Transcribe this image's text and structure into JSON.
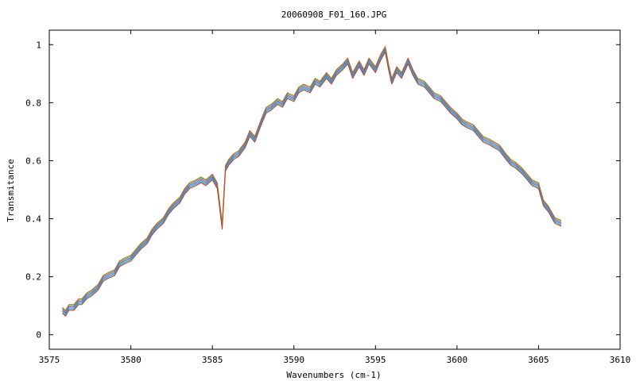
{
  "chart_data": {
    "type": "line",
    "title": "20060908_F01_160.JPG",
    "xlabel": "Wavenumbers (cm-1)",
    "ylabel": "Transmitance",
    "xlim": [
      3575,
      3610
    ],
    "ylim": [
      -0.05,
      1.05
    ],
    "xticks": [
      3575,
      3580,
      3585,
      3590,
      3595,
      3600,
      3605,
      3610
    ],
    "yticks": [
      0,
      0.2,
      0.4,
      0.6,
      0.8,
      1
    ],
    "ytick_labels": [
      "0",
      "0.2",
      "0.4",
      "0.6",
      "0.8",
      "1"
    ],
    "grid": false,
    "series_colors": [
      "#4caf50",
      "#a94fc5",
      "#3b8fd8",
      "#2ab0b0",
      "#c0392b",
      "#b5651d"
    ],
    "series_offsets": [
      0.0,
      -0.004,
      -0.008,
      -0.012,
      -0.016,
      0.004
    ],
    "x": [
      3575.8,
      3576.0,
      3576.2,
      3576.5,
      3576.8,
      3577.0,
      3577.3,
      3577.6,
      3578.0,
      3578.3,
      3578.6,
      3579.0,
      3579.3,
      3579.6,
      3580.0,
      3580.3,
      3580.6,
      3581.0,
      3581.3,
      3581.6,
      3582.0,
      3582.3,
      3582.6,
      3583.0,
      3583.3,
      3583.6,
      3584.0,
      3584.3,
      3584.6,
      3585.0,
      3585.3,
      3585.6,
      3585.8,
      3586.0,
      3586.3,
      3586.6,
      3587.0,
      3587.3,
      3587.6,
      3588.0,
      3588.3,
      3588.6,
      3589.0,
      3589.3,
      3589.6,
      3590.0,
      3590.3,
      3590.6,
      3591.0,
      3591.3,
      3591.6,
      3592.0,
      3592.3,
      3592.6,
      3593.0,
      3593.3,
      3593.6,
      3594.0,
      3594.3,
      3594.6,
      3595.0,
      3595.3,
      3595.6,
      3595.8,
      3596.0,
      3596.3,
      3596.6,
      3597.0,
      3597.3,
      3597.6,
      3598.0,
      3598.3,
      3598.6,
      3599.0,
      3599.3,
      3599.6,
      3600.0,
      3600.3,
      3600.6,
      3601.0,
      3601.3,
      3601.6,
      3602.0,
      3602.3,
      3602.6,
      3603.0,
      3603.3,
      3603.6,
      3604.0,
      3604.3,
      3604.6,
      3605.0,
      3605.3,
      3605.6,
      3606.0,
      3606.4
    ],
    "y": [
      0.09,
      0.08,
      0.1,
      0.1,
      0.12,
      0.12,
      0.14,
      0.15,
      0.17,
      0.2,
      0.21,
      0.22,
      0.25,
      0.26,
      0.27,
      0.29,
      0.31,
      0.33,
      0.36,
      0.38,
      0.4,
      0.43,
      0.45,
      0.47,
      0.5,
      0.52,
      0.53,
      0.54,
      0.53,
      0.55,
      0.52,
      0.38,
      0.58,
      0.6,
      0.62,
      0.63,
      0.66,
      0.7,
      0.68,
      0.74,
      0.78,
      0.79,
      0.81,
      0.8,
      0.83,
      0.82,
      0.85,
      0.86,
      0.85,
      0.88,
      0.87,
      0.9,
      0.88,
      0.91,
      0.93,
      0.95,
      0.9,
      0.94,
      0.91,
      0.95,
      0.92,
      0.96,
      0.99,
      0.93,
      0.88,
      0.92,
      0.9,
      0.95,
      0.91,
      0.88,
      0.87,
      0.85,
      0.83,
      0.82,
      0.8,
      0.78,
      0.76,
      0.74,
      0.73,
      0.72,
      0.7,
      0.68,
      0.67,
      0.66,
      0.65,
      0.62,
      0.6,
      0.59,
      0.57,
      0.55,
      0.53,
      0.52,
      0.46,
      0.44,
      0.4,
      0.39
    ]
  }
}
